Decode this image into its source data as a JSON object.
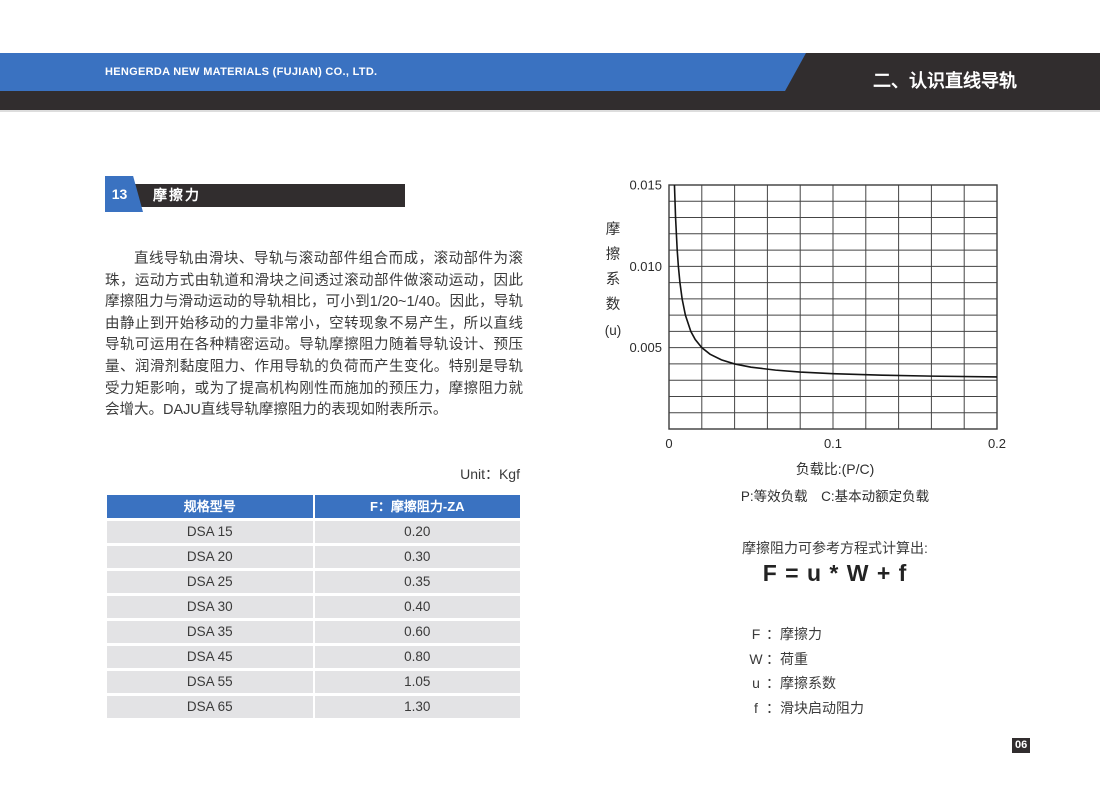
{
  "header": {
    "company": "HENGERDA NEW MATERIALS (FUJIAN) CO., LTD.",
    "section_title": "二、认识直线导轨"
  },
  "section": {
    "number": "13",
    "title": "摩擦力"
  },
  "paragraph": "直线导轨由滑块、导轨与滚动部件组合而成，滚动部件为滚珠，运动方式由轨道和滑块之间透过滚动部件做滚动运动，因此摩擦阻力与滑动运动的导轨相比，可小到1/20~1/40。因此，导轨由静止到开始移动的力量非常小，空转现象不易产生，所以直线导轨可运用在各种精密运动。导轨摩擦阻力随着导轨设计、预压量、润滑剂黏度阻力、作用导轨的负荷而产生变化。特别是导轨受力矩影响，或为了提高机构刚性而施加的预压力，摩擦阻力就会增大。DAJU直线导轨摩擦阻力的表现如附表所示。",
  "table": {
    "unit_label": "Unit：Kgf",
    "headers": [
      "规格型号",
      "F：摩擦阻力-ZA"
    ],
    "rows": [
      [
        "DSA 15",
        "0.20"
      ],
      [
        "DSA 20",
        "0.30"
      ],
      [
        "DSA 25",
        "0.35"
      ],
      [
        "DSA 30",
        "0.40"
      ],
      [
        "DSA 35",
        "0.60"
      ],
      [
        "DSA 45",
        "0.80"
      ],
      [
        "DSA 55",
        "1.05"
      ],
      [
        "DSA 65",
        "1.30"
      ]
    ]
  },
  "chart_data": {
    "type": "line",
    "title": "",
    "ylabel_chars": [
      "摩",
      "擦",
      "系",
      "数",
      "(u)"
    ],
    "xlabel": "负载比:(P/C)",
    "x_note": "P:等效负载　C:基本动额定负载",
    "xlim": [
      0,
      0.2
    ],
    "ylim": [
      0,
      0.015
    ],
    "grid_step_x": 0.02,
    "grid_step_y": 0.001,
    "x_ticks": [
      0,
      0.1,
      0.2
    ],
    "x_tick_labels": [
      "0",
      "0.1",
      "0.2"
    ],
    "y_ticks": [
      0.005,
      0.01,
      0.015
    ],
    "y_tick_labels": [
      "0.005",
      "0.010",
      "0.015"
    ],
    "legend_position": "none",
    "grid": true,
    "series": [
      {
        "name": "摩擦系数",
        "x": [
          0.00333,
          0.004,
          0.005,
          0.00571,
          0.00667,
          0.008,
          0.01,
          0.0133,
          0.016,
          0.02,
          0.025,
          0.032,
          0.04,
          0.05,
          0.065,
          0.08,
          0.1,
          0.13,
          0.16,
          0.2
        ],
        "y": [
          0.015,
          0.013,
          0.011,
          0.01,
          0.009,
          0.008,
          0.007,
          0.006,
          0.0055,
          0.005,
          0.0046,
          0.00425,
          0.004,
          0.0038,
          0.00362,
          0.0035,
          0.0034,
          0.00331,
          0.00325,
          0.0032
        ]
      }
    ]
  },
  "formula": {
    "intro": "摩擦阻力可参考方程式计算出:",
    "equation": "F = u * W + f",
    "legend": [
      {
        "symbol": "F",
        "label": "摩擦力"
      },
      {
        "symbol": "W",
        "label": "荷重"
      },
      {
        "symbol": "u",
        "label": "摩擦系数"
      },
      {
        "symbol": "f",
        "label": "滑块启动阻力"
      }
    ]
  },
  "page_number": "06",
  "colors": {
    "accent_blue": "#3a72c1",
    "dark": "#312d2e",
    "row_gray": "#e3e3e5",
    "grid": "#454545"
  }
}
